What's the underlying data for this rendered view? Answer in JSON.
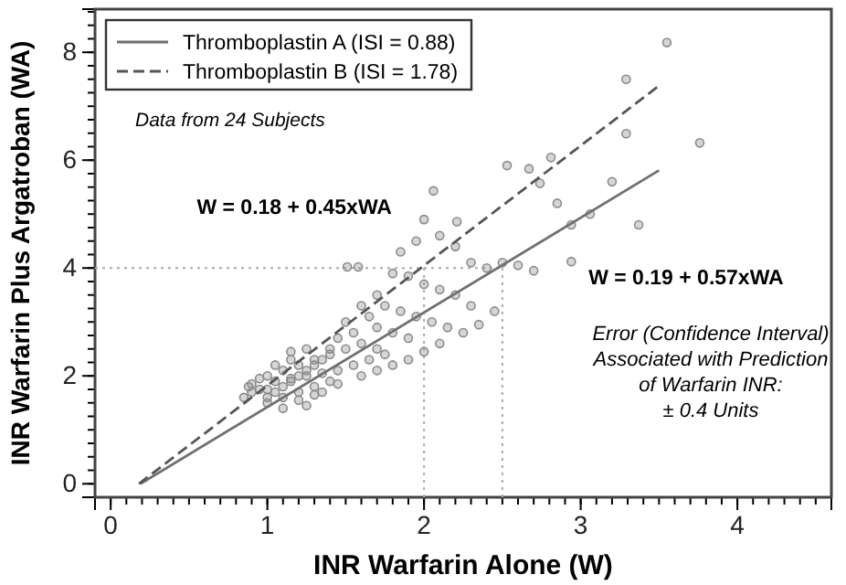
{
  "chart_data": {
    "type": "scatter",
    "xlabel": "INR Warfarin Alone (W)",
    "ylabel": "INR Warfarin Plus Argatroban (WA)",
    "xlim": [
      -0.1,
      4.6
    ],
    "ylim": [
      -0.25,
      8.8
    ],
    "xticks": [
      0,
      1,
      2,
      3,
      4
    ],
    "yticks": [
      0,
      2,
      4,
      6,
      8
    ],
    "legend": "top left",
    "series": [
      {
        "marker": "circle",
        "color": "#8a8a8a",
        "x": [
          3.55,
          3.29,
          3.29,
          3.76,
          3.2,
          3.37,
          2.53,
          2.67,
          2.81,
          2.74,
          2.85,
          2.06,
          2.21,
          2.0,
          2.94,
          3.06,
          2.94,
          1.51,
          1.58,
          1.85,
          1.95,
          2.1,
          2.2,
          2.3,
          2.4,
          2.5,
          2.6,
          2.7,
          1.8,
          1.9,
          2.0,
          2.1,
          2.2,
          2.3,
          2.45,
          1.7,
          1.75,
          1.85,
          1.95,
          2.05,
          2.15,
          1.6,
          1.65,
          1.7,
          1.8,
          1.9,
          1.5,
          1.55,
          1.6,
          1.7,
          1.45,
          1.4,
          1.35,
          1.3,
          1.25,
          1.2,
          1.15,
          1.1,
          1.05,
          1.0,
          0.95,
          0.9,
          0.85,
          1.0,
          1.1,
          1.2,
          1.3,
          1.4,
          1.5,
          1.05,
          1.15,
          1.25,
          1.35,
          1.45,
          0.9,
          1.0,
          1.1,
          1.2,
          1.3,
          1.4,
          1.55,
          1.65,
          1.75,
          1.0,
          1.1,
          1.2,
          1.3,
          0.95,
          1.05,
          1.15,
          0.88,
          1.25,
          1.35,
          1.45,
          1.6,
          1.7,
          1.8,
          1.9,
          2.0,
          2.1,
          2.25,
          2.35,
          1.15,
          1.25
        ],
        "values": [
          8.18,
          7.5,
          6.49,
          6.32,
          5.6,
          4.8,
          5.9,
          5.84,
          6.05,
          5.57,
          5.2,
          5.43,
          4.86,
          4.9,
          4.12,
          5.0,
          4.8,
          4.02,
          4.02,
          4.3,
          4.5,
          4.6,
          4.4,
          4.1,
          4.0,
          4.1,
          4.05,
          3.95,
          3.9,
          3.85,
          3.7,
          3.6,
          3.5,
          3.3,
          3.2,
          3.5,
          3.3,
          3.2,
          3.1,
          3.0,
          2.9,
          3.3,
          3.1,
          2.9,
          2.8,
          2.7,
          3.0,
          2.8,
          2.6,
          2.5,
          2.7,
          2.5,
          2.3,
          2.2,
          2.1,
          2.0,
          1.9,
          1.8,
          1.7,
          1.6,
          1.75,
          1.7,
          1.6,
          2.0,
          2.1,
          2.2,
          2.3,
          2.4,
          2.5,
          1.9,
          1.95,
          2.0,
          2.05,
          2.1,
          1.85,
          1.75,
          1.6,
          1.7,
          1.8,
          1.9,
          2.2,
          2.3,
          2.4,
          1.5,
          1.4,
          1.55,
          1.65,
          1.95,
          2.2,
          2.3,
          1.8,
          1.45,
          1.7,
          1.85,
          2.0,
          2.1,
          2.2,
          2.3,
          2.45,
          2.6,
          2.8,
          2.95,
          2.45,
          2.5
        ]
      },
      {
        "type": "line",
        "name": "Thromboplastin A (ISI = 0.88)",
        "color": "#707070",
        "line_style": "solid",
        "x": [
          0.19,
          3.5
        ],
        "values": [
          0,
          5.81
        ]
      },
      {
        "type": "line",
        "name": "Thromboplastin B (ISI = 1.78)",
        "color": "#555555",
        "line_style": "dashed",
        "x": [
          0.18,
          3.5
        ],
        "values": [
          0,
          7.38
        ]
      }
    ],
    "ref_lines": [
      {
        "axis": "y",
        "value": 4,
        "color": "#aaaaaa",
        "line_style": "dotted"
      },
      {
        "axis": "x",
        "value": 2,
        "color": "#aaaaaa",
        "line_style": "dotted"
      },
      {
        "axis": "x",
        "value": 2.5,
        "color": "#aaaaaa",
        "line_style": "dotted"
      }
    ],
    "annotations": [
      "Data from 24 Subjects",
      "W = 0.18 + 0.45xWA",
      "W = 0.19 + 0.57xWA",
      "Error (Confidence Interval)\nAssociated with Prediction\nof Warfarin INR:\n± 0.4 Units"
    ]
  }
}
